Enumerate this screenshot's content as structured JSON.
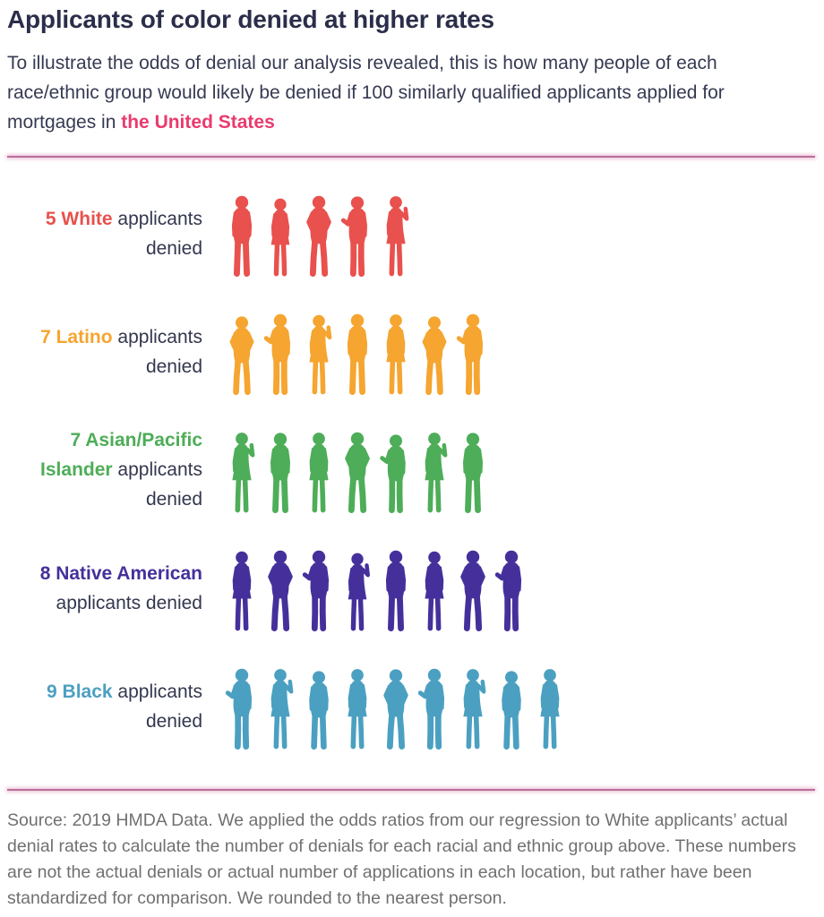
{
  "header": {
    "title": "Applicants of color denied at higher rates",
    "subtitle_before": "To illustrate the odds of denial our analysis revealed, this is how many people of each race/ethnic group would likely be denied if 100 similarly qualified applicants applied for mortgages in ",
    "subtitle_highlight": "the United States",
    "highlight_color": "#ea3a6e"
  },
  "chart_data": {
    "type": "pictogram-bar",
    "title": "Applicants of color denied at higher rates",
    "unit": "applicants denied per 100 similarly qualified mortgage applicants, United States",
    "categories": [
      "White",
      "Latino",
      "Asian/Pacific Islander",
      "Native American",
      "Black"
    ],
    "values": [
      5,
      7,
      7,
      8,
      9
    ],
    "colors": [
      "#e8514d",
      "#f5a530",
      "#4ead58",
      "#45309b",
      "#4ba0c1"
    ],
    "legend": "none",
    "grid": false
  },
  "groups": [
    {
      "name": "White",
      "highlight": "5 White",
      "rest": " applicants denied",
      "count": 5,
      "color": "#e8514d"
    },
    {
      "name": "Latino",
      "highlight": "7 Latino",
      "rest": " applicants denied",
      "count": 7,
      "color": "#f5a530"
    },
    {
      "name": "Asian/Pacific Islander",
      "highlight": "7 Asian/Pacific Islander",
      "rest": " applicants denied",
      "count": 7,
      "color": "#4ead58"
    },
    {
      "name": "Native American",
      "highlight": "8 Native American",
      "rest": " applicants denied",
      "count": 8,
      "color": "#45309b"
    },
    {
      "name": "Black",
      "highlight": "9 Black",
      "rest": " applicants denied",
      "count": 9,
      "color": "#4ba0c1"
    }
  ],
  "footer": {
    "source_text": "Source: 2019 HMDA Data. We applied the odds ratios from our regression to White applicants’ actual denial rates to calculate the number of denials for each racial and ethnic group above. These numbers are not the actual denials or actual number of applications in each location, but rather have been standardized for comparison. We rounded to the nearest person."
  }
}
